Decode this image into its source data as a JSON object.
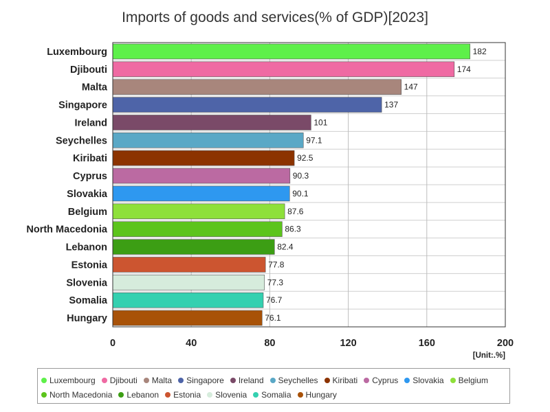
{
  "chart_data": {
    "type": "bar",
    "orientation": "horizontal",
    "title": "Imports of goods and services(% of GDP)[2023]",
    "unit_label": "[Unit:.%]",
    "xlim": [
      0,
      200
    ],
    "ticks": [
      0,
      40,
      80,
      120,
      160,
      200
    ],
    "grid": true,
    "legend_position": "bottom",
    "categories": [
      "Luxembourg",
      "Djibouti",
      "Malta",
      "Singapore",
      "Ireland",
      "Seychelles",
      "Kiribati",
      "Cyprus",
      "Slovakia",
      "Belgium",
      "North Macedonia",
      "Lebanon",
      "Estonia",
      "Slovenia",
      "Somalia",
      "Hungary"
    ],
    "values": [
      182,
      174,
      147,
      137,
      101,
      97.1,
      92.5,
      90.3,
      90.1,
      87.6,
      86.3,
      82.4,
      77.8,
      77.3,
      76.7,
      76.1
    ],
    "value_labels": [
      "182",
      "174",
      "147",
      "137",
      "101",
      "97.1",
      "92.5",
      "90.3",
      "90.1",
      "87.6",
      "86.3",
      "82.4",
      "77.8",
      "77.3",
      "76.7",
      "76.1"
    ],
    "colors": [
      "#5ef04a",
      "#ef6aa3",
      "#a8867c",
      "#4e64a8",
      "#7a4a68",
      "#5aa8c6",
      "#8c3300",
      "#bb6aa2",
      "#2e98f0",
      "#8ee03a",
      "#5cc41c",
      "#3c9e14",
      "#cc5530",
      "#d6ecdc",
      "#34d0b0",
      "#a85208"
    ]
  }
}
